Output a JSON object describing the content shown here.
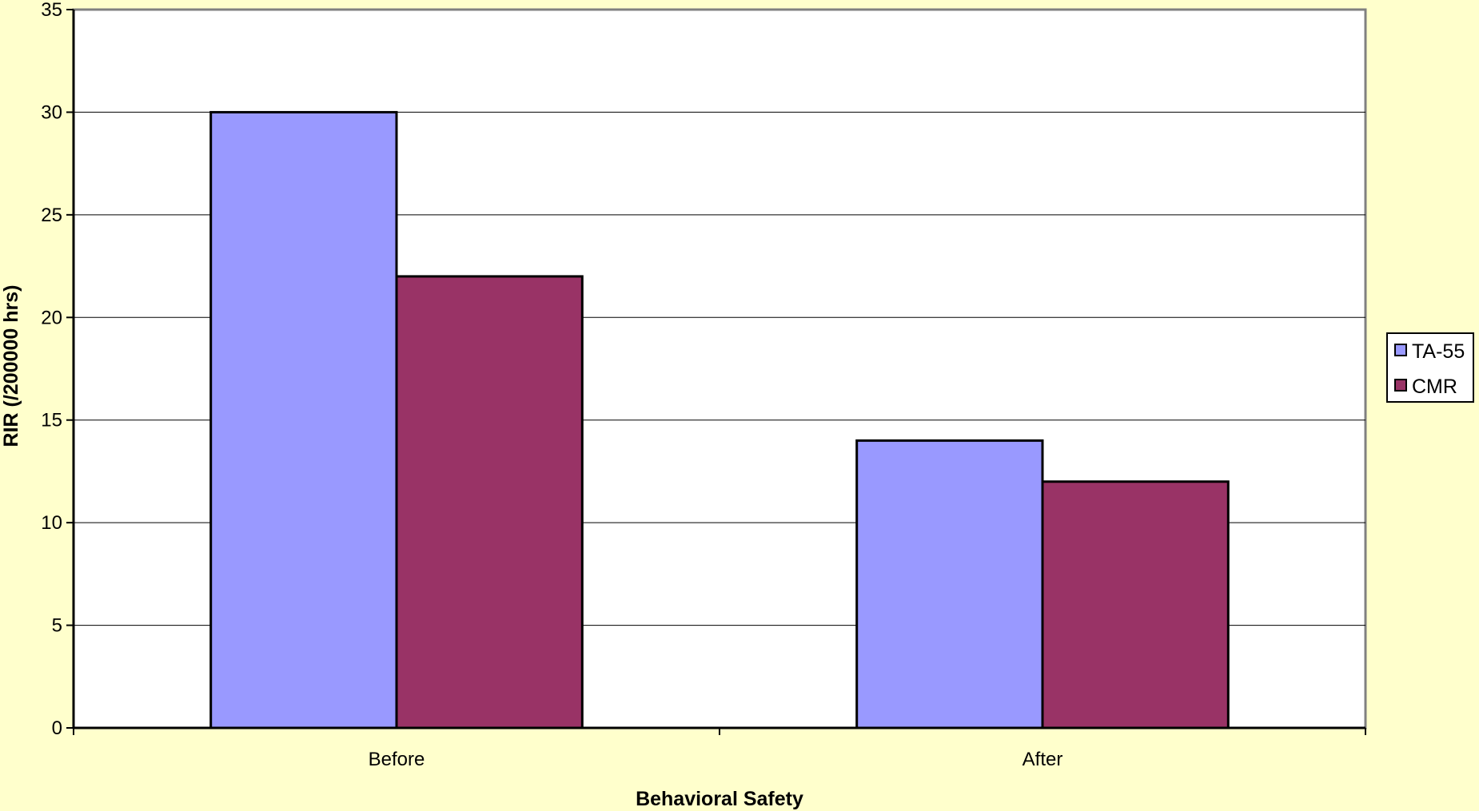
{
  "chart_data": {
    "type": "bar",
    "title": "",
    "xlabel": "Behavioral Safety",
    "ylabel": "RIR (/200000 hrs)",
    "categories": [
      "Before",
      "After"
    ],
    "series": [
      {
        "name": "TA-55",
        "values": [
          30,
          14
        ]
      },
      {
        "name": "CMR",
        "values": [
          22,
          12
        ]
      }
    ],
    "ylim": [
      0,
      35
    ],
    "yticks": [
      0,
      5,
      10,
      15,
      20,
      25,
      30,
      35
    ],
    "grid": true,
    "legend": "right",
    "colors": {
      "TA-55": "#9999FF",
      "CMR": "#993366",
      "page_background": "#FFFFCC",
      "plot_background": "#FFFFFF"
    }
  }
}
